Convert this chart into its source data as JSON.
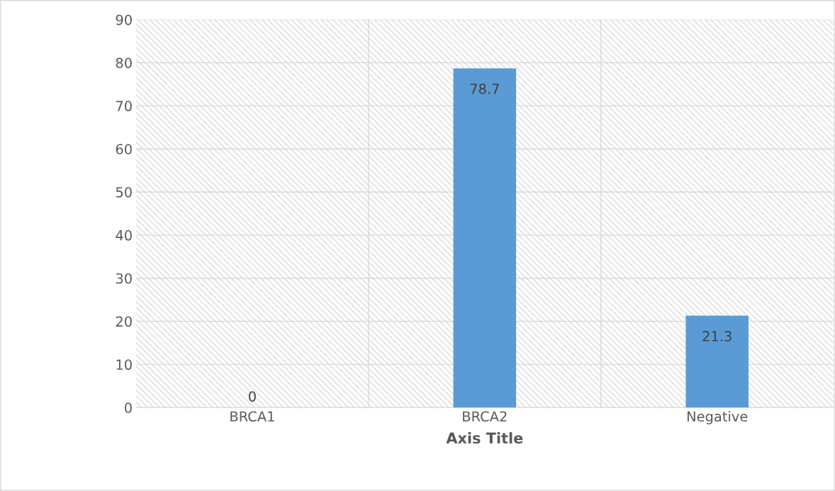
{
  "chart_data": {
    "type": "bar",
    "xlabel": "Axis Title",
    "categories": [
      "BRCA1",
      "BRCA2",
      "Negative"
    ],
    "values": [
      0,
      78.7,
      21.3
    ],
    "color": "#5b9bd5",
    "ylim": [
      0,
      90
    ],
    "yticks": [
      0,
      10,
      20,
      30,
      40,
      50,
      60,
      70,
      80,
      90
    ],
    "grid": true,
    "data_labels": true
  }
}
